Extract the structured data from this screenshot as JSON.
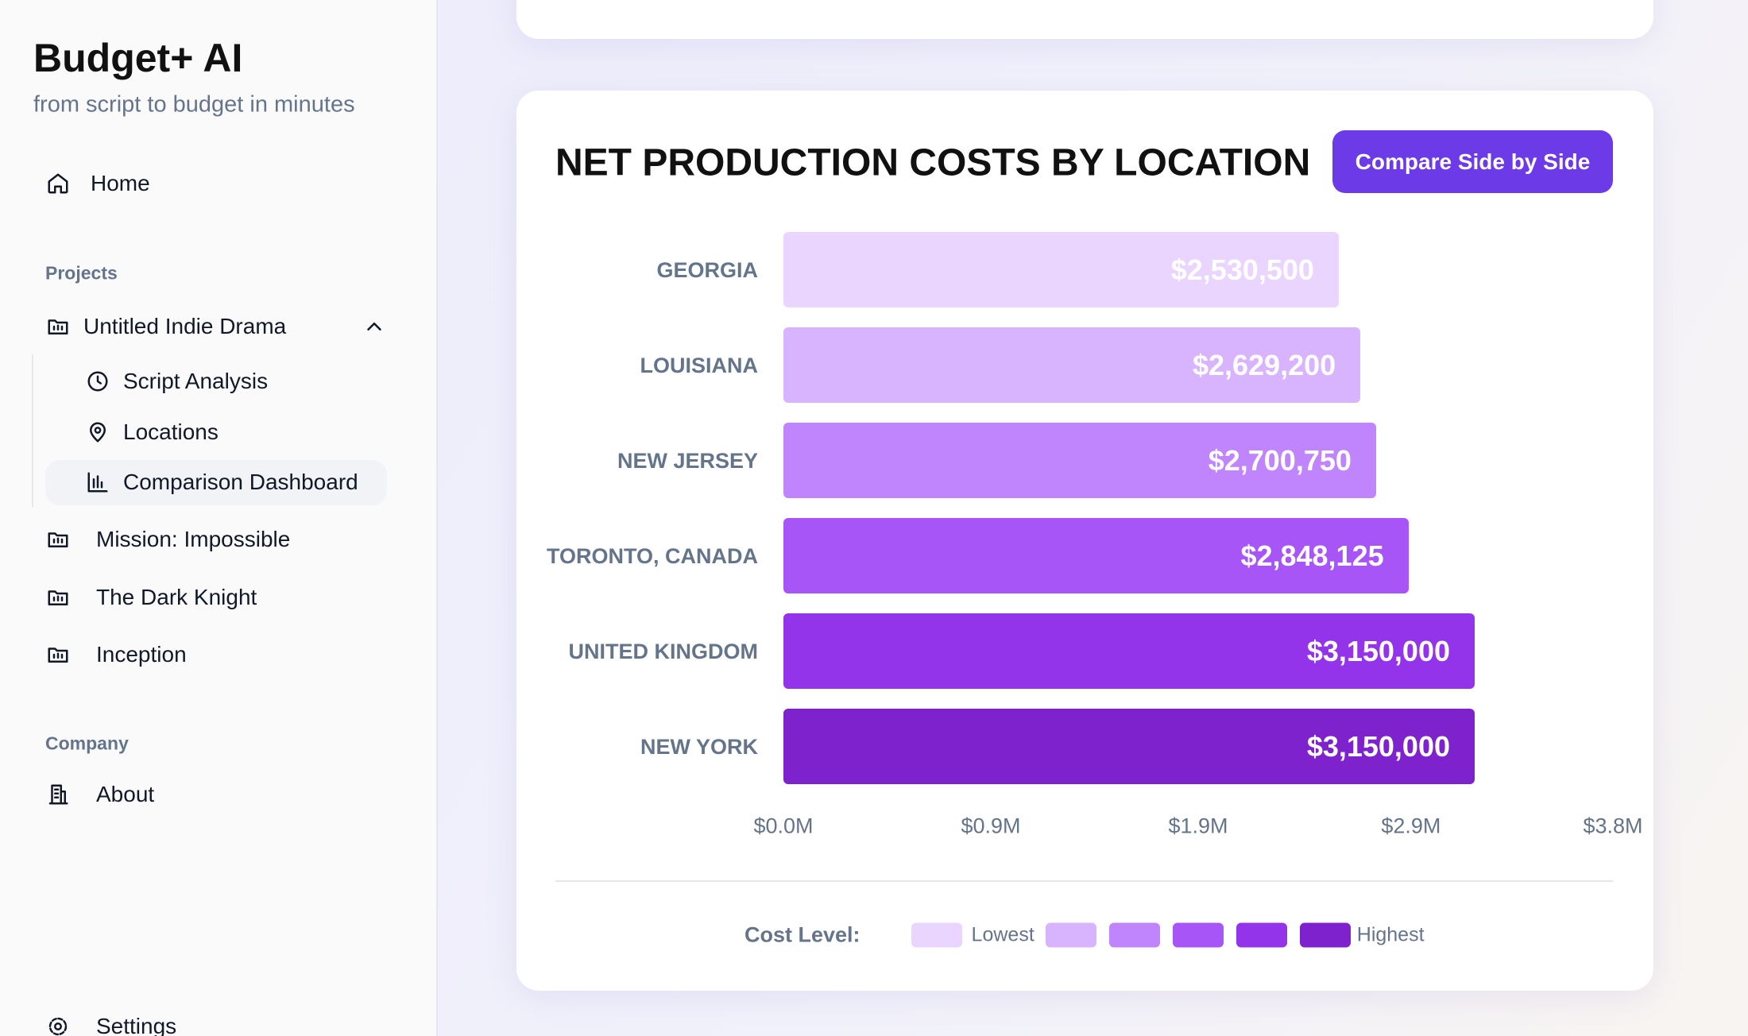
{
  "sidebar": {
    "title": "Budget+ AI",
    "subtitle": "from script to budget in minutes",
    "home": "Home",
    "projects_heading": "Projects",
    "projects": [
      "Untitled Indie Drama",
      "Mission: Impossible",
      "The Dark Knight",
      "Inception"
    ],
    "subpages": [
      "Script Analysis",
      "Locations",
      "Comparison Dashboard"
    ],
    "company_heading": "Company",
    "company": [
      "About"
    ],
    "settings": "Settings"
  },
  "compare_button": "Compare Side by Side",
  "chart_data": {
    "type": "bar",
    "orientation": "horizontal",
    "title": "NET PRODUCTION COSTS BY LOCATION",
    "categories": [
      "GEORGIA",
      "LOUISIANA",
      "NEW JERSEY",
      "TORONTO, CANADA",
      "UNITED KINGDOM",
      "NEW YORK"
    ],
    "values": [
      2530500,
      2629200,
      2700750,
      2848125,
      3150000,
      3150000
    ],
    "value_labels": [
      "$2,530,500",
      "$2,629,200",
      "$2,700,750",
      "$2,848,125",
      "$3,150,000",
      "$3,150,000"
    ],
    "colors": [
      "#e9d5ff",
      "#d8b4fe",
      "#c084fc",
      "#a855f7",
      "#9333ea",
      "#7e22ce"
    ],
    "xlim": [
      0,
      3780000
    ],
    "xticks": [
      {
        "value": 0,
        "label": "$0.0M"
      },
      {
        "value": 945000,
        "label": "$0.9M"
      },
      {
        "value": 1890000,
        "label": "$1.9M"
      },
      {
        "value": 2860000,
        "label": "$2.9M"
      },
      {
        "value": 3780000,
        "label": "$3.8M"
      }
    ],
    "legend": {
      "title": "Cost Level:",
      "low": "Lowest",
      "high": "Highest"
    }
  }
}
